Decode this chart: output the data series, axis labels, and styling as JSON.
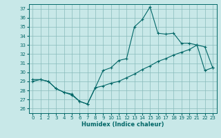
{
  "xlabel": "Humidex (Indice chaleur)",
  "bg_color": "#c8e8e8",
  "line_color": "#006666",
  "grid_color": "#88bbbb",
  "xlim": [
    -0.5,
    23.5
  ],
  "ylim": [
    25.5,
    37.5
  ],
  "xticks": [
    0,
    1,
    2,
    3,
    4,
    5,
    6,
    7,
    8,
    9,
    10,
    11,
    12,
    13,
    14,
    15,
    16,
    17,
    18,
    19,
    20,
    21,
    22,
    23
  ],
  "yticks": [
    26,
    27,
    28,
    29,
    30,
    31,
    32,
    33,
    34,
    35,
    36,
    37
  ],
  "series1_x": [
    0,
    1,
    2,
    3,
    4,
    5,
    6,
    7,
    8,
    9,
    10,
    11,
    12,
    13,
    14,
    15,
    16,
    17,
    18,
    19,
    20,
    21,
    22,
    23
  ],
  "series1_y": [
    29.0,
    29.2,
    29.0,
    28.2,
    27.8,
    27.5,
    26.8,
    26.5,
    28.3,
    30.2,
    30.5,
    31.3,
    31.5,
    35.0,
    35.8,
    37.2,
    34.3,
    34.2,
    34.3,
    33.2,
    33.2,
    33.0,
    32.8,
    30.5
  ],
  "series2_x": [
    0,
    1,
    2,
    3,
    4,
    5,
    6,
    7,
    8,
    9,
    10,
    11,
    12,
    13,
    14,
    15,
    16,
    17,
    18,
    19,
    20,
    21,
    22,
    23
  ],
  "series2_y": [
    29.2,
    29.2,
    29.0,
    28.2,
    27.8,
    27.6,
    26.8,
    26.5,
    28.3,
    28.5,
    28.8,
    29.0,
    29.4,
    29.8,
    30.3,
    30.7,
    31.2,
    31.5,
    31.9,
    32.2,
    32.5,
    33.0,
    30.2,
    30.5
  ]
}
